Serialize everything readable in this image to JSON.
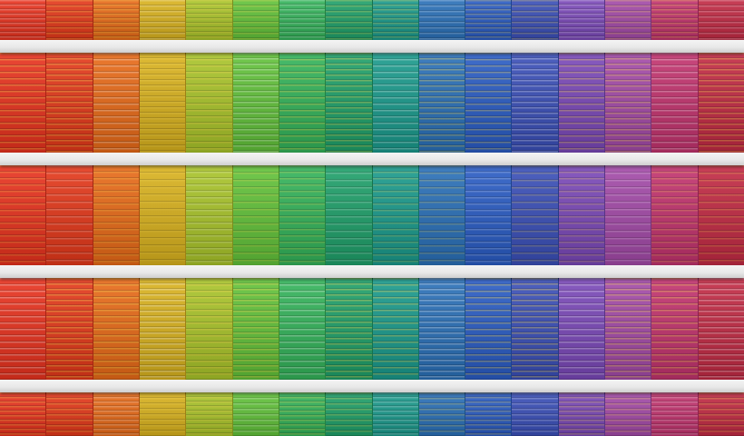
{
  "image": {
    "subject": "",
    "columns": [
      {
        "color": "#e8321e"
      },
      {
        "color": "#e4381a"
      },
      {
        "color": "#e86a18"
      },
      {
        "color": "#d9b21e"
      },
      {
        "color": "#a9c42a"
      },
      {
        "color": "#62c23a"
      },
      {
        "color": "#33b35a"
      },
      {
        "color": "#1fa06a"
      },
      {
        "color": "#1a9a8c"
      },
      {
        "color": "#2a70b8"
      },
      {
        "color": "#2a5cc4"
      },
      {
        "color": "#3a4fb8"
      },
      {
        "color": "#7a48b8"
      },
      {
        "color": "#a34aa8"
      },
      {
        "color": "#c2336e"
      },
      {
        "color": "#c22a44"
      }
    ],
    "floor_count": 5,
    "ledge_color": "#ececec",
    "slat_stripe_color": "#f2d24a"
  }
}
